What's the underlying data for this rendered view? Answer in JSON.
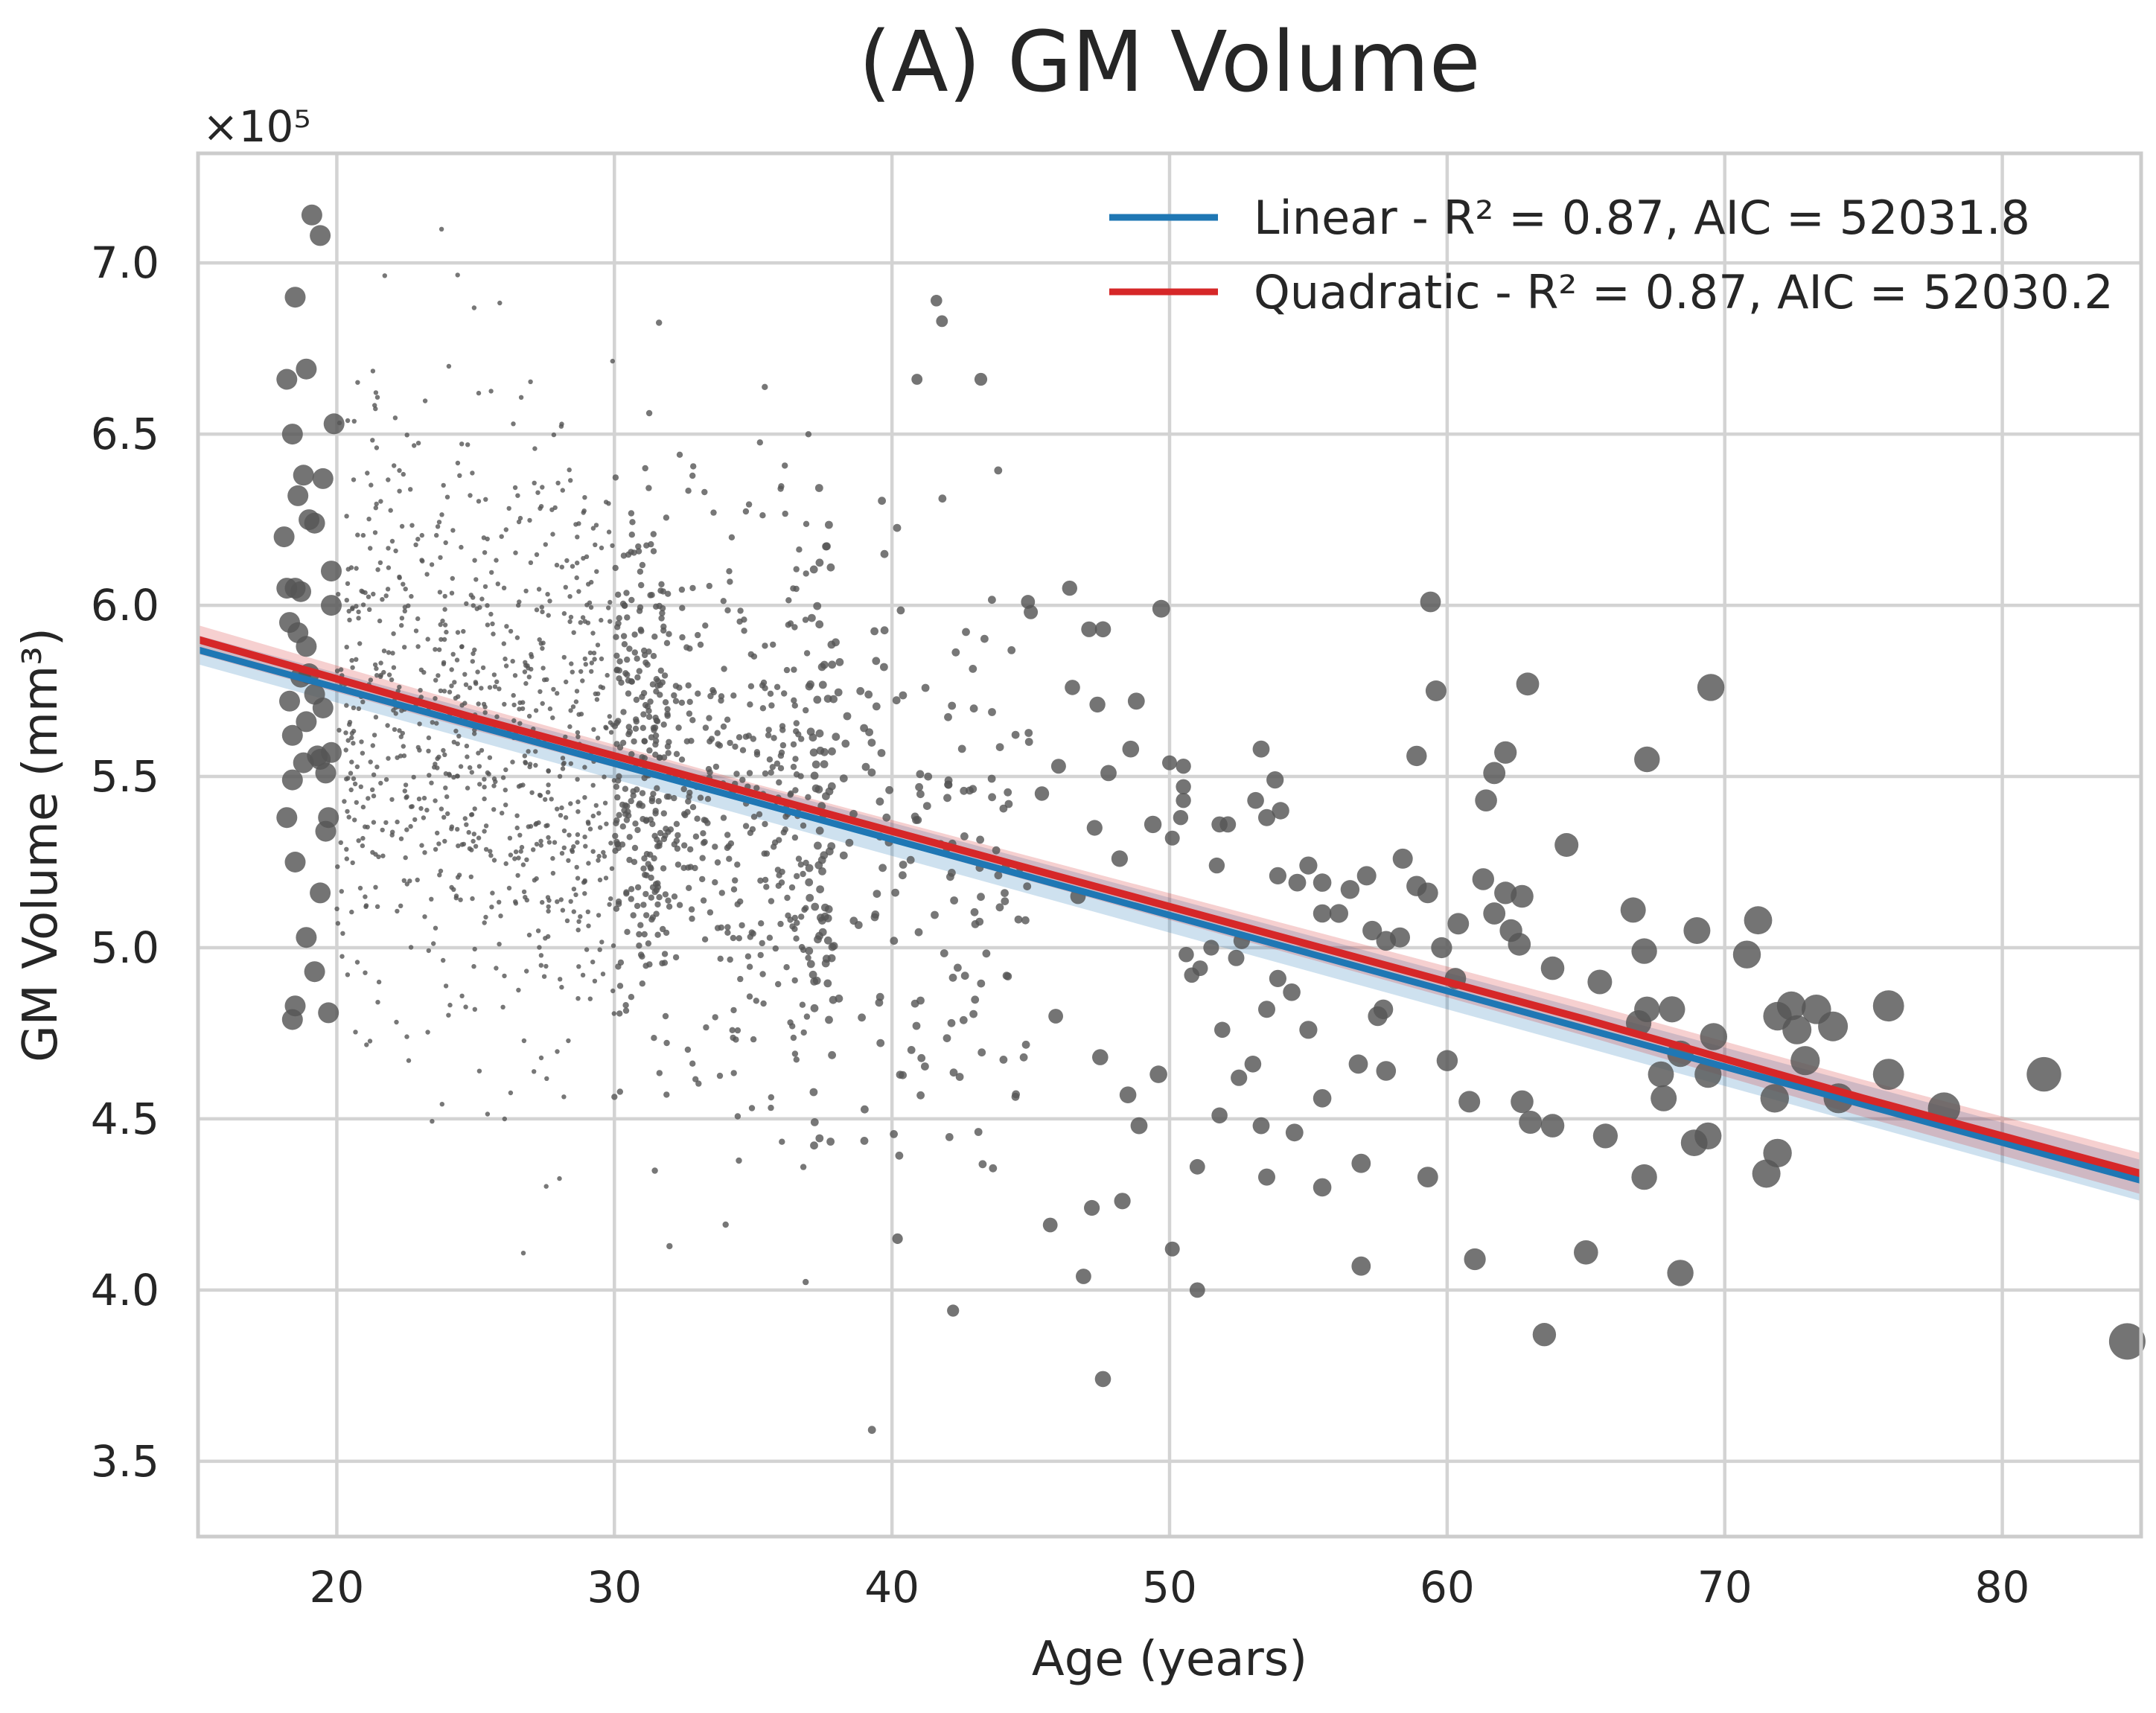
{
  "chart_data": {
    "type": "scatter",
    "title": "(A) GM Volume",
    "xlabel": "Age (years)",
    "ylabel": "GM Volume (mm³)",
    "y_multiplier": "×10⁵",
    "xlim": [
      15,
      85
    ],
    "ylim": [
      3.28,
      7.32
    ],
    "x_ticks": [
      "20",
      "30",
      "40",
      "50",
      "60",
      "70",
      "80"
    ],
    "y_ticks": [
      "3.5",
      "4.0",
      "4.5",
      "5.0",
      "5.5",
      "6.0",
      "6.5",
      "7.0"
    ],
    "grid": true,
    "legend_position": "top-right",
    "colors": {
      "points": "#555555",
      "linear": "#1f77b4",
      "quadratic": "#d62728",
      "grid": "#d3d3d3"
    },
    "series": [
      {
        "name": "Linear - R² = 0.87, AIC = 52031.8",
        "kind": "line",
        "x": [
          15,
          85
        ],
        "y": [
          5.87,
          4.32
        ]
      },
      {
        "name": "Quadratic - R² = 0.87, AIC = 52030.2",
        "kind": "line",
        "x": [
          15,
          25,
          35,
          45,
          55,
          65,
          75,
          85
        ],
        "y": [
          5.9,
          5.67,
          5.45,
          5.23,
          5.01,
          4.79,
          4.56,
          4.34
        ]
      },
      {
        "kind": "scatter",
        "note_size": "marker size grows with age",
        "points": [
          [
            18.2,
            6.05
          ],
          [
            18.3,
            5.72
          ],
          [
            18.5,
            6.9
          ],
          [
            18.4,
            6.5
          ],
          [
            18.6,
            6.32
          ],
          [
            18.8,
            6.38
          ],
          [
            19.1,
            7.14
          ],
          [
            19.4,
            7.08
          ],
          [
            18.9,
            6.69
          ],
          [
            18.2,
            6.66
          ],
          [
            18.1,
            6.2
          ],
          [
            18.5,
            6.05
          ],
          [
            18.7,
            6.04
          ],
          [
            18.3,
            5.95
          ],
          [
            18.6,
            5.92
          ],
          [
            18.9,
            5.88
          ],
          [
            19.0,
            5.8
          ],
          [
            19.2,
            5.74
          ],
          [
            19.5,
            5.7
          ],
          [
            19.3,
            5.56
          ],
          [
            18.8,
            5.54
          ],
          [
            18.4,
            5.49
          ],
          [
            18.2,
            5.38
          ],
          [
            18.5,
            5.25
          ],
          [
            19.6,
            5.34
          ],
          [
            19.7,
            5.38
          ],
          [
            19.4,
            5.16
          ],
          [
            18.9,
            5.03
          ],
          [
            19.2,
            4.93
          ],
          [
            18.5,
            4.83
          ],
          [
            18.4,
            4.79
          ],
          [
            19.7,
            4.81
          ],
          [
            19.8,
            6.1
          ],
          [
            19.8,
            6.0
          ],
          [
            19.9,
            6.53
          ],
          [
            19.5,
            6.37
          ],
          [
            19.2,
            6.24
          ],
          [
            19.0,
            6.25
          ],
          [
            18.9,
            5.66
          ],
          [
            19.6,
            5.51
          ],
          [
            19.8,
            5.57
          ],
          [
            19.4,
            5.55
          ],
          [
            18.4,
            5.62
          ],
          [
            18.7,
            5.79
          ],
          [
            41.6,
            6.89
          ],
          [
            41.8,
            6.83
          ],
          [
            43.2,
            6.66
          ],
          [
            40.9,
            6.66
          ],
          [
            46.4,
            6.05
          ],
          [
            44.9,
            6.01
          ],
          [
            45.0,
            5.98
          ],
          [
            47.6,
            5.93
          ],
          [
            47.1,
            5.93
          ],
          [
            49.7,
            5.99
          ],
          [
            46.5,
            5.76
          ],
          [
            48.8,
            5.72
          ],
          [
            47.4,
            5.71
          ],
          [
            46.0,
            5.53
          ],
          [
            47.8,
            5.51
          ],
          [
            48.6,
            5.58
          ],
          [
            45.4,
            5.45
          ],
          [
            47.3,
            5.35
          ],
          [
            49.4,
            5.36
          ],
          [
            48.2,
            5.26
          ],
          [
            46.7,
            5.15
          ],
          [
            45.9,
            4.8
          ],
          [
            47.5,
            4.68
          ],
          [
            48.5,
            4.57
          ],
          [
            48.9,
            4.48
          ],
          [
            48.3,
            4.26
          ],
          [
            47.2,
            4.24
          ],
          [
            46.9,
            4.04
          ],
          [
            45.7,
            4.19
          ],
          [
            47.6,
            3.74
          ],
          [
            42.2,
            3.94
          ],
          [
            40.2,
            4.15
          ],
          [
            50.0,
            5.54
          ],
          [
            50.5,
            5.53
          ],
          [
            50.5,
            5.47
          ],
          [
            50.5,
            5.43
          ],
          [
            50.4,
            5.38
          ],
          [
            50.1,
            5.32
          ],
          [
            51.8,
            5.36
          ],
          [
            52.1,
            5.36
          ],
          [
            53.1,
            5.43
          ],
          [
            53.3,
            5.58
          ],
          [
            53.5,
            5.38
          ],
          [
            53.8,
            5.49
          ],
          [
            54.0,
            5.4
          ],
          [
            53.9,
            5.21
          ],
          [
            54.6,
            5.19
          ],
          [
            55.5,
            5.19
          ],
          [
            55.0,
            5.24
          ],
          [
            55.5,
            5.1
          ],
          [
            56.5,
            5.17
          ],
          [
            57.1,
            5.21
          ],
          [
            56.1,
            5.1
          ],
          [
            57.3,
            5.05
          ],
          [
            57.8,
            5.02
          ],
          [
            58.4,
            5.26
          ],
          [
            58.3,
            5.03
          ],
          [
            58.9,
            5.18
          ],
          [
            58.9,
            5.56
          ],
          [
            59.3,
            5.16
          ],
          [
            59.6,
            5.75
          ],
          [
            59.4,
            6.01
          ],
          [
            59.8,
            5.0
          ],
          [
            60.4,
            5.07
          ],
          [
            60.3,
            4.91
          ],
          [
            60.0,
            4.67
          ],
          [
            61.3,
            5.2
          ],
          [
            61.4,
            5.43
          ],
          [
            61.7,
            5.51
          ],
          [
            62.1,
            5.57
          ],
          [
            62.1,
            5.16
          ],
          [
            61.7,
            5.1
          ],
          [
            62.3,
            5.05
          ],
          [
            62.7,
            5.15
          ],
          [
            62.6,
            5.01
          ],
          [
            62.9,
            5.77
          ],
          [
            63.8,
            4.94
          ],
          [
            64.3,
            5.3
          ],
          [
            65.5,
            4.9
          ],
          [
            66.7,
            5.11
          ],
          [
            67.2,
            5.55
          ],
          [
            67.1,
            4.99
          ],
          [
            67.2,
            4.82
          ],
          [
            66.9,
            4.78
          ],
          [
            67.7,
            4.63
          ],
          [
            67.8,
            4.56
          ],
          [
            68.1,
            4.82
          ],
          [
            68.4,
            4.69
          ],
          [
            69.0,
            5.05
          ],
          [
            69.5,
            5.76
          ],
          [
            69.4,
            4.63
          ],
          [
            69.6,
            4.74
          ],
          [
            69.4,
            4.45
          ],
          [
            68.9,
            4.43
          ],
          [
            70.8,
            4.98
          ],
          [
            71.2,
            5.08
          ],
          [
            71.9,
            4.8
          ],
          [
            71.8,
            4.56
          ],
          [
            71.5,
            4.34
          ],
          [
            71.9,
            4.4
          ],
          [
            72.4,
            4.83
          ],
          [
            72.6,
            4.76
          ],
          [
            72.9,
            4.67
          ],
          [
            73.3,
            4.82
          ],
          [
            73.9,
            4.77
          ],
          [
            74.1,
            4.56
          ],
          [
            75.9,
            4.83
          ],
          [
            75.9,
            4.63
          ],
          [
            77.9,
            4.53
          ],
          [
            81.5,
            4.63
          ],
          [
            84.5,
            3.85
          ],
          [
            67.1,
            4.33
          ],
          [
            68.4,
            4.05
          ],
          [
            65.0,
            4.11
          ],
          [
            63.5,
            3.87
          ],
          [
            61.0,
            4.09
          ],
          [
            56.9,
            4.07
          ],
          [
            51.0,
            4.0
          ],
          [
            50.1,
            4.12
          ],
          [
            49.6,
            4.63
          ],
          [
            51.8,
            4.51
          ],
          [
            52.5,
            4.62
          ],
          [
            53.0,
            4.66
          ],
          [
            53.3,
            4.48
          ],
          [
            54.5,
            4.46
          ],
          [
            55.5,
            4.56
          ],
          [
            55.5,
            4.3
          ],
          [
            56.9,
            4.37
          ],
          [
            55.0,
            4.76
          ],
          [
            56.8,
            4.66
          ],
          [
            57.5,
            4.8
          ],
          [
            57.7,
            4.82
          ],
          [
            57.8,
            4.64
          ],
          [
            59.3,
            4.33
          ],
          [
            60.8,
            4.55
          ],
          [
            62.7,
            4.55
          ],
          [
            63.0,
            4.49
          ],
          [
            63.8,
            4.48
          ],
          [
            65.7,
            4.45
          ],
          [
            54.4,
            4.87
          ],
          [
            53.5,
            4.82
          ],
          [
            52.4,
            4.97
          ],
          [
            51.1,
            4.94
          ],
          [
            50.6,
            4.98
          ],
          [
            50.8,
            4.92
          ],
          [
            53.9,
            4.91
          ],
          [
            52.6,
            5.02
          ],
          [
            51.5,
            5.0
          ],
          [
            51.7,
            5.24
          ],
          [
            51.9,
            4.76
          ],
          [
            51.0,
            4.36
          ],
          [
            53.5,
            4.33
          ]
        ]
      }
    ]
  }
}
